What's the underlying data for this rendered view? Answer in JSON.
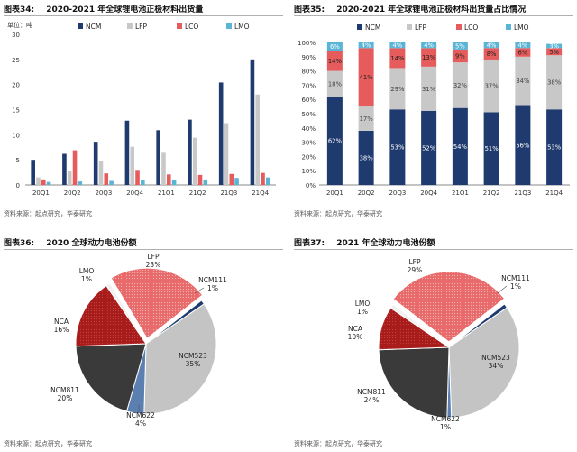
{
  "panels": {
    "fig34": {
      "title_prefix": "图表34:",
      "title": "2020-2021 年全球锂电池正极材料出货量",
      "source": "资料来源：起点研究，华泰研究",
      "unit": "单位：吨"
    },
    "fig35": {
      "title_prefix": "图表35:",
      "title": "2020-2021 年全球锂电池正极材料出货量占比情况",
      "source": "资料来源：起点研究，华泰研究"
    },
    "fig36": {
      "title_prefix": "图表36:",
      "title": "2020 全球动力电池份额",
      "source": "资料来源：起点研究，华泰研究"
    },
    "fig37": {
      "title_prefix": "图表37:",
      "title": "2021 年全球动力电池份额",
      "source": "资料来源：起点研究，华泰研究"
    }
  },
  "colors": {
    "NCM": "#1f3a6e",
    "LFP": "#c8c8c8",
    "LCO": "#e65c5c",
    "LMO": "#5ab4d6",
    "NCM111": "#1f3a6e",
    "NCM523": "#c4c4c4",
    "NCM622": "#5b7fb0",
    "NCM811": "#3a3a3a",
    "NCA": "#a61c1c",
    "LMO_pie": "#f0f0f0",
    "LFP_pie": "#e87070"
  },
  "chart_data": [
    {
      "id": "fig34",
      "type": "bar",
      "categories": [
        "20Q1",
        "20Q2",
        "20Q3",
        "20Q4",
        "21Q1",
        "21Q2",
        "21Q3",
        "21Q4"
      ],
      "series": [
        {
          "name": "NCM",
          "values": [
            5.0,
            6.2,
            8.6,
            12.8,
            10.9,
            13.0,
            20.4,
            25.0
          ]
        },
        {
          "name": "LFP",
          "values": [
            1.5,
            2.7,
            4.8,
            7.6,
            6.4,
            9.4,
            12.3,
            18.0
          ]
        },
        {
          "name": "LCO",
          "values": [
            1.1,
            6.9,
            2.3,
            3.0,
            2.1,
            2.0,
            2.2,
            2.4
          ]
        },
        {
          "name": "LMO",
          "values": [
            0.6,
            0.7,
            0.8,
            1.0,
            1.0,
            1.1,
            1.4,
            1.5
          ]
        }
      ],
      "ylim": [
        0,
        30
      ],
      "yticks": [
        0,
        5,
        10,
        15,
        20,
        25,
        30
      ],
      "legend": "top"
    },
    {
      "id": "fig35",
      "type": "bar",
      "stacked": true,
      "categories": [
        "20Q1",
        "20Q2",
        "20Q3",
        "20Q4",
        "21Q1",
        "21Q2",
        "21Q3",
        "21Q4"
      ],
      "series": [
        {
          "name": "NCM",
          "values": [
            62,
            38,
            53,
            52,
            54,
            51,
            56,
            53
          ],
          "labels": [
            "62%",
            "38%",
            "53%",
            "52%",
            "54%",
            "51%",
            "56%",
            "53%"
          ]
        },
        {
          "name": "LFP",
          "values": [
            18,
            17,
            29,
            31,
            32,
            37,
            34,
            38
          ],
          "labels": [
            "18%",
            "17%",
            "29%",
            "31%",
            "32%",
            "37%",
            "34%",
            "38%"
          ]
        },
        {
          "name": "LCO",
          "values": [
            14,
            41,
            14,
            13,
            9,
            8,
            6,
            5
          ],
          "labels": [
            "14%",
            "41%",
            "14%",
            "13%",
            "9%",
            "8%",
            "6%",
            "5%"
          ]
        },
        {
          "name": "LMO",
          "values": [
            6,
            4,
            4,
            4,
            5,
            4,
            4,
            3
          ],
          "labels": [
            "6%",
            "4%",
            "4%",
            "4%",
            "5%",
            "4%",
            "4%",
            "3%"
          ]
        }
      ],
      "ylim": [
        0,
        100
      ],
      "yticks": [
        "0%",
        "10%",
        "20%",
        "30%",
        "40%",
        "50%",
        "60%",
        "70%",
        "80%",
        "90%",
        "100%"
      ],
      "legend": "top"
    },
    {
      "id": "fig36",
      "type": "pie",
      "slices": [
        {
          "name": "NCM111",
          "value": 1,
          "label": "1%"
        },
        {
          "name": "NCM523",
          "value": 35,
          "label": "35%"
        },
        {
          "name": "NCM622",
          "value": 4,
          "label": "4%"
        },
        {
          "name": "NCM811",
          "value": 20,
          "label": "20%"
        },
        {
          "name": "NCA",
          "value": 16,
          "label": "16%"
        },
        {
          "name": "LMO",
          "value": 1,
          "label": "1%"
        },
        {
          "name": "LFP",
          "value": 23,
          "label": "23%"
        }
      ]
    },
    {
      "id": "fig37",
      "type": "pie",
      "slices": [
        {
          "name": "NCM111",
          "value": 1,
          "label": "1%"
        },
        {
          "name": "NCM523",
          "value": 34,
          "label": "34%"
        },
        {
          "name": "NCM622",
          "value": 1,
          "label": "1%"
        },
        {
          "name": "NCM811",
          "value": 24,
          "label": "24%"
        },
        {
          "name": "NCA",
          "value": 10,
          "label": "10%"
        },
        {
          "name": "LMO",
          "value": 1,
          "label": "1%"
        },
        {
          "name": "LFP",
          "value": 29,
          "label": "29%"
        }
      ]
    }
  ]
}
